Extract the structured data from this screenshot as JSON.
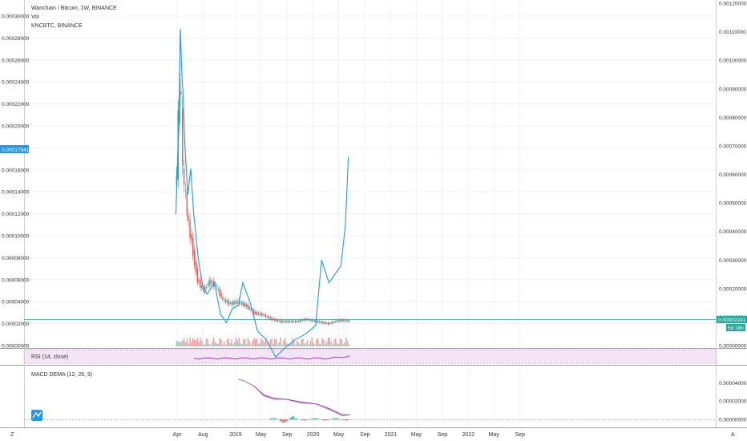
{
  "legend": {
    "main_title": "Wanchain / Bitcoin, 1W, BINANCE",
    "volume": "Vol",
    "compare": "KNCBTC, BINANCE",
    "rsi": "RSI (14, close)",
    "macd": "MACD DEMA (12, 26, 9)"
  },
  "badges": {
    "left_price": "0.00017941",
    "right_price": "0.00002241",
    "countdown": "5d 18h"
  },
  "bottom_bar": {
    "left_glyph": "Z",
    "right_glyph": "A"
  },
  "colors": {
    "up": "#26a69a",
    "down": "#ef5350",
    "compare_line": "#2196f3",
    "rsi": "#9c27b0",
    "macd": "#9575cd",
    "signal": "#ab47bc"
  },
  "chart_data": [
    {
      "type": "candlestick",
      "title": "Wanchain / Bitcoin, 1W, BINANCE",
      "x_ticks": [
        "Apr",
        "Aug",
        "2019",
        "May",
        "Sep",
        "2020",
        "May",
        "Sep",
        "2021",
        "May",
        "Sep",
        "2022",
        "May",
        "Sep"
      ],
      "y_ticks": [
        "0.00000000",
        "0.00002000",
        "0.00004000",
        "0.00006000",
        "0.00008000",
        "0.00010000",
        "0.00012000",
        "0.00014000",
        "0.00016000",
        "0.00018000",
        "0.00020000",
        "0.00022000",
        "0.00024000",
        "0.00026000",
        "0.00028000",
        "0.00030000"
      ],
      "ylim": [
        0,
        0.0003
      ],
      "last_value": 2.241e-05,
      "close_series": [
        {
          "t": "2018-03-26",
          "v": 0.000145
        },
        {
          "t": "2018-04-02",
          "v": 0.000155
        },
        {
          "t": "2018-04-09",
          "v": 0.00021
        },
        {
          "t": "2018-04-16",
          "v": 0.00024
        },
        {
          "t": "2018-04-23",
          "v": 0.00022
        },
        {
          "t": "2018-04-30",
          "v": 0.00016
        },
        {
          "t": "2018-05-14",
          "v": 0.000135
        },
        {
          "t": "2018-05-28",
          "v": 0.00011
        },
        {
          "t": "2018-06-11",
          "v": 9.5e-05
        },
        {
          "t": "2018-06-25",
          "v": 7.5e-05
        },
        {
          "t": "2018-07-09",
          "v": 6e-05
        },
        {
          "t": "2018-08-06",
          "v": 5e-05
        },
        {
          "t": "2018-09-03",
          "v": 5.8e-05
        },
        {
          "t": "2018-10-01",
          "v": 5.5e-05
        },
        {
          "t": "2018-11-05",
          "v": 4.2e-05
        },
        {
          "t": "2018-12-10",
          "v": 3.8e-05
        },
        {
          "t": "2019-01-14",
          "v": 4e-05
        },
        {
          "t": "2019-02-25",
          "v": 3.6e-05
        },
        {
          "t": "2019-04-01",
          "v": 3e-05
        },
        {
          "t": "2019-05-13",
          "v": 2.8e-05
        },
        {
          "t": "2019-06-24",
          "v": 2.4e-05
        },
        {
          "t": "2019-08-05",
          "v": 2.2e-05
        },
        {
          "t": "2019-09-09",
          "v": 2.2e-05
        },
        {
          "t": "2019-10-21",
          "v": 2.2e-05
        },
        {
          "t": "2019-12-02",
          "v": 2.4e-05
        },
        {
          "t": "2020-01-20",
          "v": 2.2e-05
        },
        {
          "t": "2020-03-16",
          "v": 2e-05
        },
        {
          "t": "2020-05-04",
          "v": 2.3e-05
        },
        {
          "t": "2020-06-22",
          "v": 2.241e-05
        }
      ]
    },
    {
      "type": "line",
      "series": [
        {
          "name": "KNCBTC, BINANCE"
        }
      ],
      "y_ticks": [
        "0.00000000",
        "0.00010000",
        "0.00020000",
        "0.00030000",
        "0.00040000",
        "0.00050000",
        "0.00060000",
        "0.00070000",
        "0.00080000",
        "0.00090000",
        "0.00100000",
        "0.00110000",
        "0.00120000"
      ],
      "ylim": [
        0,
        0.0012
      ],
      "points": [
        {
          "t": "2018-03-26",
          "v": 0.00046
        },
        {
          "t": "2018-04-02",
          "v": 0.00063
        },
        {
          "t": "2018-04-09",
          "v": 0.0008
        },
        {
          "t": "2018-04-16",
          "v": 0.00111
        },
        {
          "t": "2018-04-23",
          "v": 0.00096
        },
        {
          "t": "2018-04-30",
          "v": 0.00087
        },
        {
          "t": "2018-05-07",
          "v": 0.00071
        },
        {
          "t": "2018-05-21",
          "v": 0.00053
        },
        {
          "t": "2018-06-04",
          "v": 0.00062
        },
        {
          "t": "2018-06-18",
          "v": 0.00046
        },
        {
          "t": "2018-07-09",
          "v": 0.00031
        },
        {
          "t": "2018-07-30",
          "v": 0.00021
        },
        {
          "t": "2018-08-20",
          "v": 0.00018
        },
        {
          "t": "2018-09-24",
          "v": 0.00022
        },
        {
          "t": "2018-10-22",
          "v": 0.00011
        },
        {
          "t": "2018-11-19",
          "v": 8e-05
        },
        {
          "t": "2018-12-17",
          "v": 0.00013
        },
        {
          "t": "2019-01-14",
          "v": 0.00014
        },
        {
          "t": "2019-02-04",
          "v": 0.00022
        },
        {
          "t": "2019-03-11",
          "v": 0.00015
        },
        {
          "t": "2019-04-15",
          "v": 5e-05
        },
        {
          "t": "2019-05-27",
          "v": 2e-05
        },
        {
          "t": "2019-07-08",
          "v": -4e-05
        },
        {
          "t": "2019-08-19",
          "v": -1e-05
        },
        {
          "t": "2019-10-07",
          "v": 2e-05
        },
        {
          "t": "2019-11-25",
          "v": 4e-05
        },
        {
          "t": "2020-01-13",
          "v": 7e-05
        },
        {
          "t": "2020-02-10",
          "v": 0.0003
        },
        {
          "t": "2020-03-16",
          "v": 0.00022
        },
        {
          "t": "2020-04-13",
          "v": 0.00025
        },
        {
          "t": "2020-05-11",
          "v": 0.00028
        },
        {
          "t": "2020-06-01",
          "v": 0.00042
        },
        {
          "t": "2020-06-15",
          "v": 0.00066
        }
      ]
    },
    {
      "type": "line",
      "title": "MACD DEMA (12, 26, 9)",
      "y_ticks": [
        "0.00000000",
        "0.00002000",
        "0.00004000"
      ],
      "ylim": [
        0,
        5e-05
      ],
      "series": [
        {
          "name": "MACD",
          "points": [
            {
              "t": "2019-01-14",
              "v": 4.4e-05
            },
            {
              "t": "2019-02-11",
              "v": 4.2e-05
            },
            {
              "t": "2019-04-01",
              "v": 3.6e-05
            },
            {
              "t": "2019-05-13",
              "v": 2.6e-05
            },
            {
              "t": "2019-07-01",
              "v": 2.2e-05
            },
            {
              "t": "2019-08-26",
              "v": 2.2e-05
            },
            {
              "t": "2019-11-04",
              "v": 1.8e-05
            },
            {
              "t": "2020-01-13",
              "v": 1.7e-05
            },
            {
              "t": "2020-03-16",
              "v": 1.1e-05
            },
            {
              "t": "2020-05-18",
              "v": 4e-06
            },
            {
              "t": "2020-06-22",
              "v": 5e-06
            }
          ]
        },
        {
          "name": "Signal",
          "points": [
            {
              "t": "2019-03-25",
              "v": 3.7e-05
            },
            {
              "t": "2019-05-13",
              "v": 2.7e-05
            },
            {
              "t": "2019-07-01",
              "v": 2.3e-05
            },
            {
              "t": "2019-08-26",
              "v": 2.2e-05
            },
            {
              "t": "2019-11-04",
              "v": 1.9e-05
            },
            {
              "t": "2020-01-13",
              "v": 1.7e-05
            },
            {
              "t": "2020-03-16",
              "v": 1.2e-05
            },
            {
              "t": "2020-05-18",
              "v": 5e-06
            },
            {
              "t": "2020-06-22",
              "v": 5e-06
            }
          ]
        }
      ]
    }
  ]
}
